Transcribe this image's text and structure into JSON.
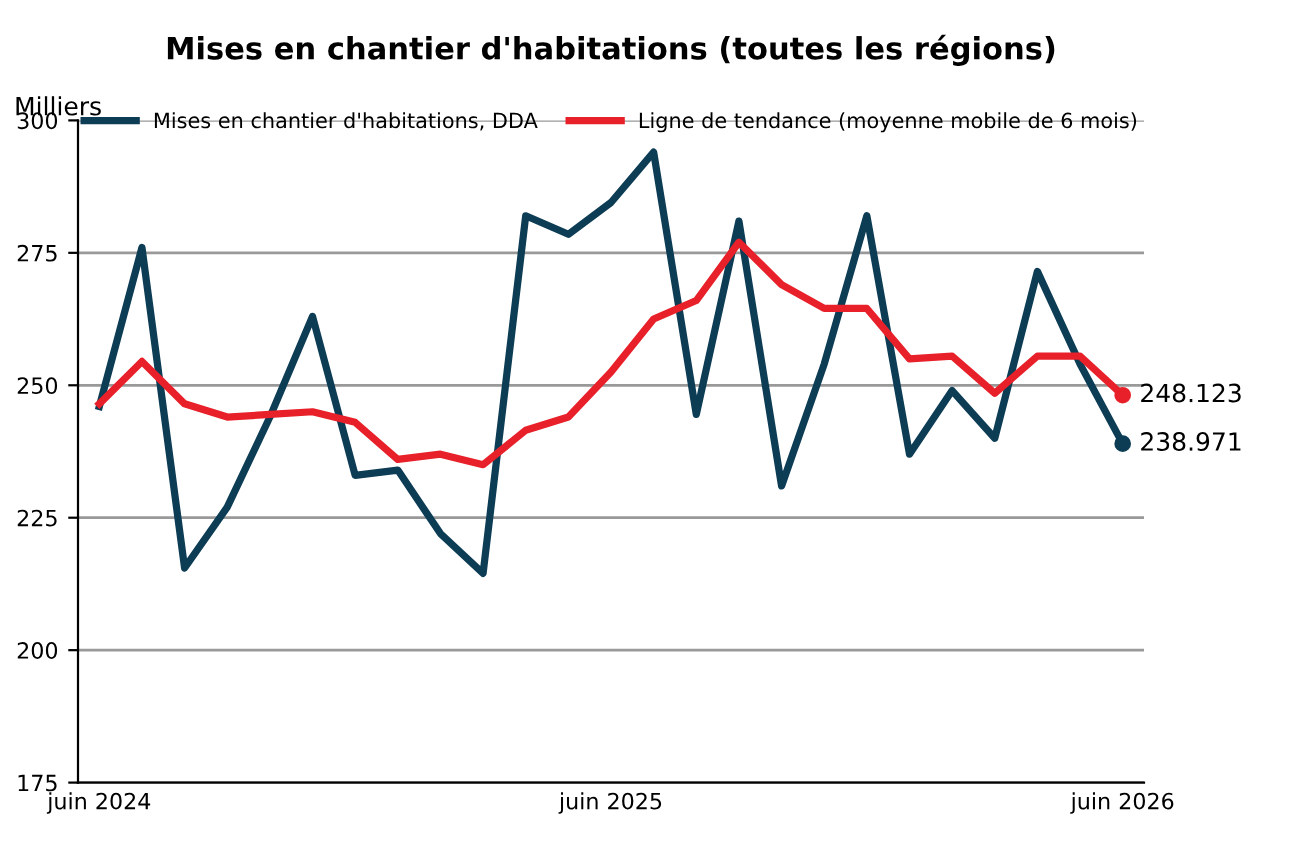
{
  "chart_data": {
    "type": "line",
    "title": "Mises en chantier d'habitations (toutes les régions)",
    "ylabel": "Milliers",
    "categories": [
      "juin 2024",
      null,
      null,
      null,
      null,
      null,
      null,
      null,
      null,
      null,
      null,
      null,
      "juin 2025",
      null,
      null,
      null,
      null,
      null,
      null,
      null,
      null,
      null,
      null,
      null,
      "juin 2026"
    ],
    "series": [
      {
        "name": "Mises en chantier d'habitations, DDA",
        "color": "#0d3c55",
        "values": [
          246,
          276,
          215.5,
          227,
          244,
          263,
          233,
          234,
          222,
          214.5,
          282,
          278.5,
          284.5,
          294,
          244.5,
          281,
          231,
          254,
          282,
          237,
          249,
          240,
          271.5,
          254,
          238.971
        ],
        "value_labels": [
          null,
          null,
          null,
          null,
          null,
          null,
          null,
          null,
          null,
          null,
          null,
          null,
          null,
          null,
          null,
          null,
          null,
          null,
          null,
          null,
          null,
          null,
          null,
          null,
          "238.971"
        ]
      },
      {
        "name": "Ligne de tendance (moyenne mobile de 6 mois)",
        "color": "#e8202a",
        "values": [
          246.5,
          254.5,
          246.5,
          244,
          244.5,
          245,
          243,
          236,
          237,
          235,
          241.5,
          244,
          252.5,
          262.5,
          266,
          277,
          269,
          264.5,
          264.5,
          255,
          255.5,
          248.5,
          255.5,
          255.5,
          248.123
        ],
        "value_labels": [
          null,
          null,
          null,
          null,
          null,
          null,
          null,
          null,
          null,
          null,
          null,
          null,
          null,
          null,
          null,
          null,
          null,
          null,
          null,
          null,
          null,
          null,
          null,
          null,
          "248.123"
        ]
      }
    ],
    "ylim": [
      175,
      300
    ],
    "yticks": [
      175,
      200,
      225,
      250,
      275,
      300
    ],
    "grid": "y",
    "legend": "top",
    "marker": "none",
    "line_style": "solid"
  }
}
